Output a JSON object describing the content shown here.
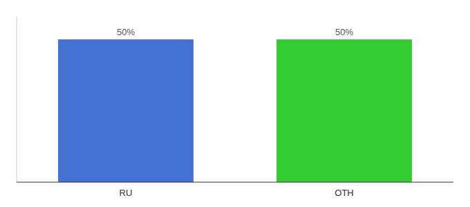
{
  "chart_data": {
    "type": "bar",
    "categories": [
      "RU",
      "OTH"
    ],
    "values": [
      50,
      50
    ],
    "value_labels": [
      "50%",
      "50%"
    ],
    "colors": [
      "#4472d4",
      "#33cc33"
    ],
    "ylim": [
      0,
      58
    ],
    "data_labels": true,
    "tick_labels": "x"
  }
}
